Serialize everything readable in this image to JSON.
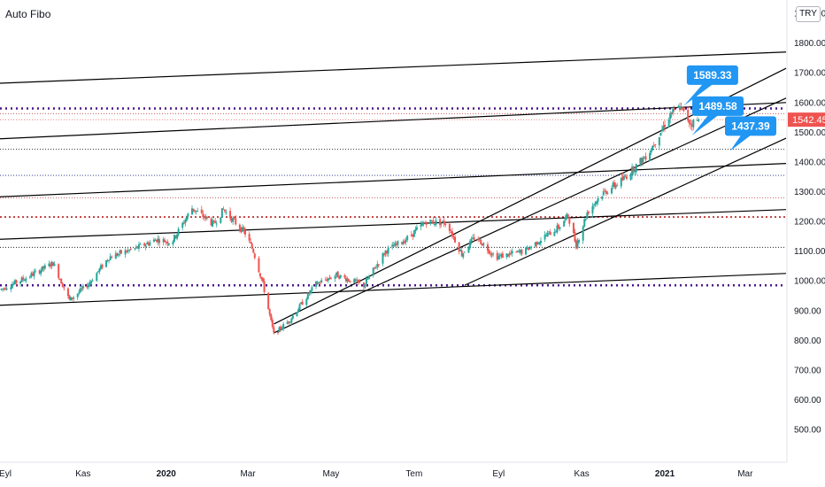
{
  "header": {
    "indicator_title": "Auto Fibo",
    "currency": "TRY"
  },
  "colors": {
    "up": "#26a69a",
    "down": "#ef5350",
    "callout": "#2196f3",
    "price_tag": "#ef5350",
    "fib_dotted_strong": "#4a148c",
    "fib_dotted_red": "#b71c1c",
    "fib_dotted_blue": "#1a237e",
    "trend_line": "#000000"
  },
  "chart_data": {
    "type": "candlestick",
    "y_axis": {
      "ticks": [
        {
          "value": 500,
          "label": "500.00"
        },
        {
          "value": 600,
          "label": "600.00"
        },
        {
          "value": 700,
          "label": "700.00"
        },
        {
          "value": 800,
          "label": "800.00"
        },
        {
          "value": 900,
          "label": "900.00"
        },
        {
          "value": 1000,
          "label": "1000.00"
        },
        {
          "value": 1100,
          "label": "1100.00"
        },
        {
          "value": 1200,
          "label": "1200.00"
        },
        {
          "value": 1300,
          "label": "1300.00"
        },
        {
          "value": 1400,
          "label": "1400.00"
        },
        {
          "value": 1500,
          "label": "1500.00"
        },
        {
          "value": 1600,
          "label": "1600.00"
        },
        {
          "value": 1700,
          "label": "1700.00"
        },
        {
          "value": 1800,
          "label": "1800.00"
        },
        {
          "value": 1900,
          "label": "1900.00"
        }
      ],
      "range": [
        390,
        1945
      ]
    },
    "x_axis": {
      "range": [
        "2019-09-01",
        "2021-03-31"
      ],
      "labels": [
        {
          "date": "2019-09-01",
          "label": "Eyl"
        },
        {
          "date": "2019-11-01",
          "label": "Kas"
        },
        {
          "date": "2020-01-01",
          "label": "2020"
        },
        {
          "date": "2020-03-01",
          "label": "Mar"
        },
        {
          "date": "2020-05-01",
          "label": "May"
        },
        {
          "date": "2020-07-01",
          "label": "Tem"
        },
        {
          "date": "2020-09-01",
          "label": "Eyl"
        },
        {
          "date": "2020-11-01",
          "label": "Kas"
        },
        {
          "date": "2021-01-01",
          "label": "2021"
        },
        {
          "date": "2021-03-01",
          "label": "Mar"
        }
      ]
    },
    "price_anchors": [
      {
        "date": "2019-09-01",
        "price": 970
      },
      {
        "date": "2019-09-20",
        "price": 1010
      },
      {
        "date": "2019-10-10",
        "price": 1060
      },
      {
        "date": "2019-10-22",
        "price": 935
      },
      {
        "date": "2019-11-05",
        "price": 990
      },
      {
        "date": "2019-11-20",
        "price": 1080
      },
      {
        "date": "2019-12-10",
        "price": 1110
      },
      {
        "date": "2019-12-25",
        "price": 1140
      },
      {
        "date": "2020-01-05",
        "price": 1130
      },
      {
        "date": "2020-01-20",
        "price": 1245
      },
      {
        "date": "2020-02-05",
        "price": 1190
      },
      {
        "date": "2020-02-12",
        "price": 1240
      },
      {
        "date": "2020-02-28",
        "price": 1160
      },
      {
        "date": "2020-03-05",
        "price": 1100
      },
      {
        "date": "2020-03-12",
        "price": 990
      },
      {
        "date": "2020-03-20",
        "price": 820
      },
      {
        "date": "2020-04-01",
        "price": 870
      },
      {
        "date": "2020-04-20",
        "price": 990
      },
      {
        "date": "2020-05-05",
        "price": 1020
      },
      {
        "date": "2020-05-25",
        "price": 985
      },
      {
        "date": "2020-06-10",
        "price": 1100
      },
      {
        "date": "2020-06-25",
        "price": 1140
      },
      {
        "date": "2020-07-10",
        "price": 1200
      },
      {
        "date": "2020-07-25",
        "price": 1195
      },
      {
        "date": "2020-08-05",
        "price": 1090
      },
      {
        "date": "2020-08-15",
        "price": 1150
      },
      {
        "date": "2020-08-30",
        "price": 1080
      },
      {
        "date": "2020-09-20",
        "price": 1100
      },
      {
        "date": "2020-10-05",
        "price": 1150
      },
      {
        "date": "2020-10-15",
        "price": 1180
      },
      {
        "date": "2020-10-22",
        "price": 1220
      },
      {
        "date": "2020-10-28",
        "price": 1120
      },
      {
        "date": "2020-11-05",
        "price": 1230
      },
      {
        "date": "2020-11-15",
        "price": 1290
      },
      {
        "date": "2020-12-01",
        "price": 1340
      },
      {
        "date": "2020-12-20",
        "price": 1430
      },
      {
        "date": "2021-01-05",
        "price": 1560
      },
      {
        "date": "2021-01-12",
        "price": 1585
      },
      {
        "date": "2021-01-20",
        "price": 1530
      },
      {
        "date": "2021-01-26",
        "price": 1542.45
      }
    ],
    "fib_levels": [
      {
        "value": 1580,
        "style": "strong",
        "color_key": "fib_dotted_strong"
      },
      {
        "value": 1563,
        "style": "thin",
        "color_key": "fib_dotted_red"
      },
      {
        "value": 1443,
        "style": "thin",
        "color_key": "trend_line"
      },
      {
        "value": 1355,
        "style": "thin",
        "color_key": "fib_dotted_blue"
      },
      {
        "value": 1280,
        "style": "thin",
        "color_key": "fib_dotted_red"
      },
      {
        "value": 1215,
        "style": "medium",
        "color_key": "fib_dotted_red"
      },
      {
        "value": 1113,
        "style": "thin",
        "color_key": "trend_line"
      },
      {
        "value": 985,
        "style": "strong",
        "color_key": "fib_dotted_strong"
      }
    ],
    "trend_lines": [
      {
        "start": {
          "date": "2019-09-01",
          "price": 1665
        },
        "end": {
          "date": "2021-03-31",
          "price": 1770
        }
      },
      {
        "start": {
          "date": "2019-09-01",
          "price": 1478
        },
        "end": {
          "date": "2021-03-31",
          "price": 1600
        }
      },
      {
        "start": {
          "date": "2019-09-01",
          "price": 1283
        },
        "end": {
          "date": "2021-03-31",
          "price": 1395
        }
      },
      {
        "start": {
          "date": "2019-09-01",
          "price": 1140
        },
        "end": {
          "date": "2021-03-31",
          "price": 1240
        }
      },
      {
        "start": {
          "date": "2019-09-01",
          "price": 918
        },
        "end": {
          "date": "2021-03-31",
          "price": 1025
        }
      },
      {
        "start": {
          "date": "2020-03-20",
          "price": 855
        },
        "end": {
          "date": "2021-03-31",
          "price": 1715
        }
      },
      {
        "start": {
          "date": "2020-03-20",
          "price": 825
        },
        "end": {
          "date": "2021-03-31",
          "price": 1615
        }
      },
      {
        "start": {
          "date": "2020-08-07",
          "price": 985
        },
        "end": {
          "date": "2021-03-31",
          "price": 1480
        }
      }
    ],
    "callouts": [
      {
        "label": "1589.33",
        "date": "2021-01-15",
        "price": 1589.33,
        "box_date": "2021-02-05",
        "box_price": 1692
      },
      {
        "label": "1489.58",
        "date": "2021-01-21",
        "price": 1489.58,
        "box_date": "2021-02-09",
        "box_price": 1588
      },
      {
        "label": "1437.39",
        "date": "2021-02-18",
        "price": 1437.39,
        "box_date": "2021-03-05",
        "box_price": 1521
      }
    ],
    "last_price": {
      "value": 1542.45,
      "label": "1542.45"
    }
  }
}
